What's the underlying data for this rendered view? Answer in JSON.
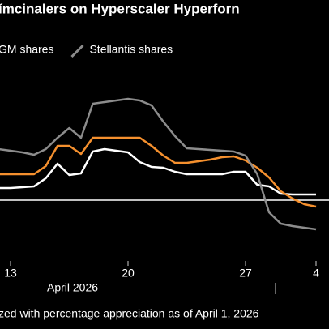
{
  "chart_data": {
    "type": "line",
    "title": "ímcinalers on Hyperscaler Hyperforn",
    "categories": [
      null,
      "13",
      null,
      null,
      null,
      null,
      null,
      null,
      null,
      null,
      null,
      "20",
      null,
      null,
      null,
      null,
      null,
      null,
      null,
      null,
      null,
      "27",
      null,
      null,
      null,
      null,
      null,
      "4"
    ],
    "x_group_label": "April 2026",
    "footnote": "zed with percentage appreciation as of April 1, 2026",
    "series": [
      {
        "color": "#ffffff",
        "values": [
          3,
          3,
          3.2,
          3.4,
          5.4,
          9,
          6.2,
          6.6,
          12,
          12.6,
          12.2,
          11.8,
          9.4,
          8.2,
          8,
          7,
          6.4,
          6.4,
          6.4,
          6.4,
          7,
          7,
          3.8,
          3.4,
          1.6,
          1.4,
          1.4,
          1.4
        ]
      },
      {
        "name": "GM shares",
        "color": "#f5902e",
        "values": [
          6.4,
          6.4,
          6.4,
          6.4,
          8.4,
          13.4,
          13.4,
          11.4,
          15.4,
          15.4,
          15.4,
          15.4,
          15.4,
          13.4,
          11,
          9.2,
          9.2,
          9.6,
          10,
          10.6,
          10.8,
          9.8,
          8,
          5.6,
          2.2,
          0.4,
          -1,
          -1.6
        ]
      },
      {
        "name": "Stellantis shares",
        "color": "#8c8c8c",
        "values": [
          12.6,
          12.2,
          11.8,
          11.2,
          12.6,
          15.4,
          17.8,
          15.4,
          23.8,
          24.2,
          24.6,
          25,
          24.6,
          23.4,
          19.4,
          15.8,
          12.8,
          12.6,
          12.4,
          12.2,
          12,
          11,
          6.4,
          -3,
          -5.8,
          -6.4,
          -6.8,
          -7.2
        ]
      }
    ],
    "ylim": [
      -15,
      30
    ],
    "reference_line": 0
  }
}
